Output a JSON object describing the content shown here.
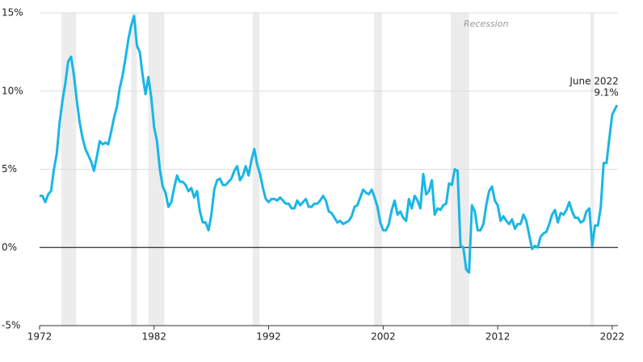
{
  "chart_data": {
    "type": "line",
    "xlim": [
      1972,
      2022.5
    ],
    "ylim": [
      -5,
      15
    ],
    "xticks": [
      1972,
      1982,
      1992,
      2002,
      2012,
      2022
    ],
    "yticks": [
      {
        "value": -5,
        "label": "-5%"
      },
      {
        "value": 0,
        "label": "0%"
      },
      {
        "value": 5,
        "label": "5%"
      },
      {
        "value": 10,
        "label": "10%"
      },
      {
        "value": 15,
        "label": "15%"
      }
    ],
    "grid": true,
    "recession_label": "Recession",
    "recessions": [
      [
        1973.9,
        1975.2
      ],
      [
        1980.0,
        1980.5
      ],
      [
        1981.5,
        1982.9
      ],
      [
        1990.6,
        1991.2
      ],
      [
        2001.2,
        2001.9
      ],
      [
        2007.9,
        2009.5
      ],
      [
        2020.1,
        2020.4
      ]
    ],
    "recession_color": "#ececec",
    "annotation": "June 2022",
    "series": [
      {
        "color": "#19b6e6",
        "x": [
          1972,
          1972.25,
          1972.5,
          1972.75,
          1973,
          1973.25,
          1973.5,
          1973.75,
          1974,
          1974.25,
          1974.5,
          1974.75,
          1975,
          1975.25,
          1975.5,
          1975.75,
          1976,
          1976.25,
          1976.5,
          1976.75,
          1977,
          1977.25,
          1977.5,
          1977.75,
          1978,
          1978.25,
          1978.5,
          1978.75,
          1979,
          1979.25,
          1979.5,
          1979.75,
          1980,
          1980.25,
          1980.5,
          1980.75,
          1981,
          1981.25,
          1981.5,
          1981.75,
          1982,
          1982.25,
          1982.5,
          1982.75,
          1983,
          1983.25,
          1983.5,
          1983.75,
          1984,
          1984.25,
          1984.5,
          1984.75,
          1985,
          1985.25,
          1985.5,
          1985.75,
          1986,
          1986.25,
          1986.5,
          1986.75,
          1987,
          1987.25,
          1987.5,
          1987.75,
          1988,
          1988.25,
          1988.5,
          1988.75,
          1989,
          1989.25,
          1989.5,
          1989.75,
          1990,
          1990.25,
          1990.5,
          1990.75,
          1991,
          1991.25,
          1991.5,
          1991.75,
          1992,
          1992.25,
          1992.5,
          1992.75,
          1993,
          1993.25,
          1993.5,
          1993.75,
          1994,
          1994.25,
          1994.5,
          1994.75,
          1995,
          1995.25,
          1995.5,
          1995.75,
          1996,
          1996.25,
          1996.5,
          1996.75,
          1997,
          1997.25,
          1997.5,
          1997.75,
          1998,
          1998.25,
          1998.5,
          1998.75,
          1999,
          1999.25,
          1999.5,
          1999.75,
          2000,
          2000.25,
          2000.5,
          2000.75,
          2001,
          2001.25,
          2001.5,
          2001.75,
          2002,
          2002.25,
          2002.5,
          2002.75,
          2003,
          2003.25,
          2003.5,
          2003.75,
          2004,
          2004.25,
          2004.5,
          2004.75,
          2005,
          2005.25,
          2005.5,
          2005.75,
          2006,
          2006.25,
          2006.5,
          2006.75,
          2007,
          2007.25,
          2007.5,
          2007.75,
          2008,
          2008.25,
          2008.5,
          2008.75,
          2009,
          2009.25,
          2009.5,
          2009.75,
          2010,
          2010.25,
          2010.5,
          2010.75,
          2011,
          2011.25,
          2011.5,
          2011.75,
          2012,
          2012.25,
          2012.5,
          2012.75,
          2013,
          2013.25,
          2013.5,
          2013.75,
          2014,
          2014.25,
          2014.5,
          2014.75,
          2015,
          2015.25,
          2015.5,
          2015.75,
          2016,
          2016.25,
          2016.5,
          2016.75,
          2017,
          2017.25,
          2017.5,
          2017.75,
          2018,
          2018.25,
          2018.5,
          2018.75,
          2019,
          2019.25,
          2019.5,
          2019.75,
          2020,
          2020.25,
          2020.5,
          2020.75,
          2021,
          2021.25,
          2021.5,
          2021.75,
          2022,
          2022.417
        ],
        "values": [
          3.3,
          3.3,
          2.9,
          3.4,
          3.6,
          5.0,
          6.0,
          8.0,
          9.4,
          10.5,
          11.9,
          12.2,
          11.0,
          9.4,
          8.0,
          7.0,
          6.3,
          5.9,
          5.5,
          4.9,
          5.8,
          6.8,
          6.6,
          6.7,
          6.6,
          7.4,
          8.3,
          9.0,
          10.2,
          11.0,
          12.1,
          13.3,
          14.2,
          14.8,
          12.9,
          12.5,
          11.0,
          9.8,
          10.9,
          9.6,
          7.7,
          6.8,
          5.0,
          3.9,
          3.5,
          2.6,
          2.9,
          3.8,
          4.6,
          4.2,
          4.2,
          4.0,
          3.6,
          3.8,
          3.2,
          3.6,
          2.3,
          1.6,
          1.6,
          1.1,
          2.1,
          3.7,
          4.3,
          4.4,
          4.0,
          4.0,
          4.2,
          4.4,
          4.9,
          5.2,
          4.3,
          4.6,
          5.2,
          4.6,
          5.6,
          6.3,
          5.3,
          4.7,
          3.8,
          3.1,
          2.9,
          3.1,
          3.1,
          3.0,
          3.2,
          3.0,
          2.8,
          2.8,
          2.5,
          2.5,
          3.0,
          2.7,
          2.9,
          3.1,
          2.6,
          2.6,
          2.8,
          2.8,
          3.0,
          3.3,
          3.0,
          2.3,
          2.2,
          1.9,
          1.6,
          1.7,
          1.5,
          1.6,
          1.7,
          2.0,
          2.6,
          2.7,
          3.2,
          3.7,
          3.5,
          3.4,
          3.7,
          3.2,
          2.6,
          1.6,
          1.1,
          1.1,
          1.5,
          2.4,
          3.0,
          2.1,
          2.3,
          1.9,
          1.7,
          3.1,
          2.5,
          3.3,
          3.0,
          2.5,
          4.7,
          3.4,
          3.6,
          4.3,
          2.1,
          2.5,
          2.4,
          2.7,
          2.8,
          4.1,
          4.0,
          5.0,
          4.9,
          0.1,
          0.0,
          -1.4,
          -1.6,
          2.7,
          2.3,
          1.1,
          1.1,
          1.5,
          2.7,
          3.6,
          3.9,
          3.0,
          2.7,
          1.7,
          2.0,
          1.7,
          1.5,
          1.8,
          1.2,
          1.5,
          1.5,
          2.1,
          1.7,
          0.8,
          -0.1,
          0.1,
          0.0,
          0.7,
          0.9,
          1.0,
          1.5,
          2.1,
          2.4,
          1.6,
          2.2,
          2.1,
          2.4,
          2.9,
          2.3,
          1.9,
          1.9,
          1.6,
          1.7,
          2.3,
          2.5,
          0.1,
          1.4,
          1.4,
          2.6,
          5.4,
          5.4,
          7.0,
          8.5,
          9.1
        ],
        "value_labels": {
          "201": "9.1%"
        }
      }
    ]
  }
}
